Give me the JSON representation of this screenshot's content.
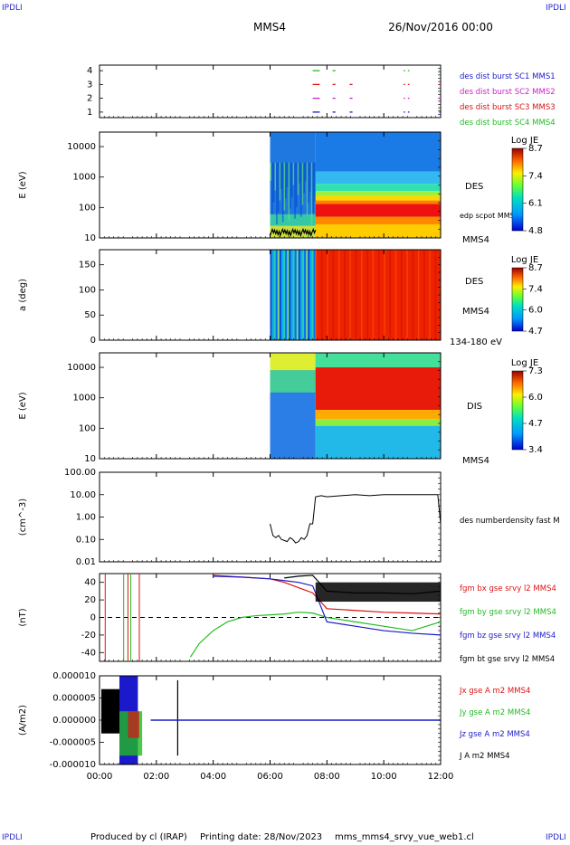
{
  "header": {
    "corner_label": "IPDLI",
    "spacecraft": "MMS4",
    "datetime": "26/Nov/2016 00:00"
  },
  "footer": {
    "produced_by": "Produced by cl (IRAP)",
    "printing_date": "Printing date: 28/Nov/2023",
    "filename": "mms_mms4_srvy_vue_web1.cl"
  },
  "time_axis": {
    "ticks": [
      "00:00",
      "02:00",
      "04:00",
      "06:00",
      "08:00",
      "10:00",
      "12:00"
    ],
    "hours": [
      0,
      2,
      4,
      6,
      8,
      10,
      12
    ]
  },
  "chart_data": [
    {
      "type": "scatter",
      "panel": "burst-availability",
      "y_ticks": [
        "1",
        "2",
        "3",
        "4"
      ],
      "ylim": [
        0.6,
        4.4
      ],
      "legend": [
        {
          "label": "des dist burst SC1 MMS1",
          "color": "#1a1acc"
        },
        {
          "label": "des dist burst SC2 MMS2",
          "color": "#cc22cc"
        },
        {
          "label": "des dist burst SC3 MMS3",
          "color": "#dd1111"
        },
        {
          "label": "des dist burst SC4 MMS4",
          "color": "#22bb22"
        }
      ],
      "segments": [
        {
          "level": 4,
          "t": [
            [
              7.5,
              7.75
            ],
            [
              8.2,
              8.3
            ],
            [
              10.7,
              10.75
            ],
            [
              10.85,
              10.9
            ],
            [
              11.95,
              12.0
            ]
          ]
        },
        {
          "level": 3,
          "t": [
            [
              7.5,
              7.75
            ],
            [
              8.2,
              8.3
            ],
            [
              8.8,
              8.9
            ],
            [
              10.7,
              10.75
            ],
            [
              10.85,
              10.9
            ],
            [
              11.95,
              12.0
            ]
          ]
        },
        {
          "level": 2,
          "t": [
            [
              7.5,
              7.75
            ],
            [
              8.2,
              8.3
            ],
            [
              8.8,
              8.9
            ],
            [
              10.7,
              10.75
            ],
            [
              10.85,
              10.9
            ],
            [
              11.95,
              12.0
            ]
          ]
        },
        {
          "level": 1,
          "t": [
            [
              7.5,
              7.75
            ],
            [
              8.2,
              8.3
            ],
            [
              8.8,
              8.9
            ],
            [
              10.7,
              10.75
            ],
            [
              10.85,
              10.9
            ],
            [
              11.95,
              12.0
            ]
          ]
        }
      ]
    },
    {
      "type": "heatmap",
      "panel": "des-energy",
      "ylabel": "E (eV)",
      "y_scale": "log",
      "ylim": [
        10,
        30000
      ],
      "y_ticks": [
        "10",
        "100",
        "1000",
        "10000"
      ],
      "label": "DES",
      "overlay_label": "edp scpot MMS4",
      "spacecraft_label": "MMS4",
      "colorbar": {
        "title": "Log JE",
        "ticks": [
          "8.7",
          "7.4",
          "6.1",
          "4.8"
        ],
        "min": 4.8,
        "max": 8.7
      },
      "data_start_hour": 6.0,
      "boundary_hour": 7.6,
      "scpot_range": [
        12,
        20
      ]
    },
    {
      "type": "heatmap",
      "panel": "des-pitch-angle",
      "ylabel": "a (deg)",
      "ylim": [
        0,
        180
      ],
      "y_ticks": [
        "0",
        "50",
        "100",
        "150"
      ],
      "label": "DES",
      "spacecraft_label": "MMS4",
      "energy_range_label": "134-180 eV",
      "colorbar": {
        "title": "Log JE",
        "ticks": [
          "8.7",
          "7.4",
          "6.0",
          "4.7"
        ],
        "min": 4.7,
        "max": 8.7
      },
      "data_start_hour": 6.0,
      "boundary_hour": 7.6
    },
    {
      "type": "heatmap",
      "panel": "dis-energy",
      "ylabel": "E (eV)",
      "y_scale": "log",
      "ylim": [
        10,
        30000
      ],
      "y_ticks": [
        "10",
        "100",
        "1000",
        "10000"
      ],
      "label": "DIS",
      "spacecraft_label": "MMS4",
      "colorbar": {
        "title": "Log JE",
        "ticks": [
          "7.3",
          "6.0",
          "4.7",
          "3.4"
        ],
        "min": 3.4,
        "max": 7.3
      },
      "data_start_hour": 6.0,
      "boundary_hour": 7.6
    },
    {
      "type": "line",
      "panel": "density",
      "ylabel": "(cm^-3)",
      "y_scale": "log",
      "ylim": [
        0.01,
        100
      ],
      "y_ticks": [
        "0.01",
        "0.10",
        "1.00",
        "10.00",
        "100.00"
      ],
      "series": [
        {
          "name": "des numberdensity fast M",
          "color": "#000000",
          "x": [
            6.0,
            6.1,
            6.2,
            6.3,
            6.4,
            6.5,
            6.6,
            6.7,
            6.8,
            6.9,
            7.0,
            7.1,
            7.2,
            7.3,
            7.4,
            7.5,
            7.6,
            7.8,
            8.0,
            8.5,
            9.0,
            9.5,
            10.0,
            10.5,
            11.0,
            11.5,
            11.9,
            12.0
          ],
          "y": [
            0.5,
            0.15,
            0.12,
            0.15,
            0.1,
            0.09,
            0.08,
            0.12,
            0.1,
            0.07,
            0.08,
            0.12,
            0.1,
            0.15,
            0.5,
            0.5,
            8.0,
            9.0,
            8.0,
            9.0,
            10.0,
            9.0,
            10.0,
            10.0,
            10.0,
            10.0,
            10.0,
            0.5
          ]
        }
      ]
    },
    {
      "type": "line",
      "panel": "magnetic-field",
      "ylabel": "(nT)",
      "ylim": [
        -50,
        50
      ],
      "y_ticks": [
        "-40",
        "-20",
        "0",
        "20",
        "40"
      ],
      "series": [
        {
          "name": "fgm bx gse srvy l2 MMS4",
          "color": "#dd1111",
          "x": [
            4.0,
            5.0,
            6.0,
            6.5,
            7.0,
            7.5,
            8.0,
            9.0,
            10.0,
            11.0,
            12.0
          ],
          "y": [
            48,
            46,
            44,
            40,
            34,
            28,
            10,
            8,
            6,
            5,
            4
          ]
        },
        {
          "name": "fgm by gse srvy l2 MMS4",
          "color": "#22bb22",
          "x": [
            3.2,
            3.5,
            4.0,
            4.5,
            5.0,
            5.5,
            6.0,
            6.5,
            7.0,
            7.5,
            8.0,
            9.0,
            10.0,
            11.0,
            12.0
          ],
          "y": [
            -45,
            -30,
            -15,
            -5,
            0,
            2,
            3,
            4,
            6,
            5,
            0,
            -5,
            -10,
            -15,
            -5
          ]
        },
        {
          "name": "fgm bz gse srvy l2 MMS4",
          "color": "#1a1acc",
          "x": [
            4.0,
            5.0,
            6.0,
            6.5,
            7.0,
            7.5,
            8.0,
            9.0,
            10.0,
            11.0,
            12.0
          ],
          "y": [
            47,
            46,
            44,
            42,
            40,
            36,
            -5,
            -10,
            -15,
            -18,
            -20
          ]
        },
        {
          "name": "fgm bt gse srvy l2 MMS4",
          "color": "#000000",
          "x": [
            6.5,
            7.0,
            7.5,
            8.0,
            9.0,
            10.0,
            11.0,
            12.0
          ],
          "y": [
            45,
            47,
            48,
            30,
            28,
            28,
            27,
            30
          ]
        }
      ],
      "spikes": [
        {
          "hour": 0.2,
          "color": "#dd1111"
        },
        {
          "hour": 0.85,
          "color": "#22bb22"
        },
        {
          "hour": 1.0,
          "color": "#dd1111"
        },
        {
          "hour": 1.1,
          "color": "#22bb22"
        },
        {
          "hour": 1.4,
          "color": "#dd1111"
        }
      ]
    },
    {
      "type": "line",
      "panel": "current-density",
      "ylabel": "(A/m2)",
      "ylim": [
        -0.0001,
        0.0001
      ],
      "y_ticks": [
        "-0.000010",
        "-0.000005",
        "0.000000",
        "0.000005",
        "0.000010"
      ],
      "series": [
        {
          "name": "Jx gse A m2 MMS4",
          "color": "#dd1111"
        },
        {
          "name": "Jy gse A m2 MMS4",
          "color": "#22bb22"
        },
        {
          "name": "Jz gse A m2 MMS4",
          "color": "#1a1acc"
        },
        {
          "name": "J A m2 MMS4",
          "color": "#000000"
        }
      ],
      "burst_interval": [
        0.0,
        1.8
      ],
      "spike_hour": 2.75
    }
  ]
}
